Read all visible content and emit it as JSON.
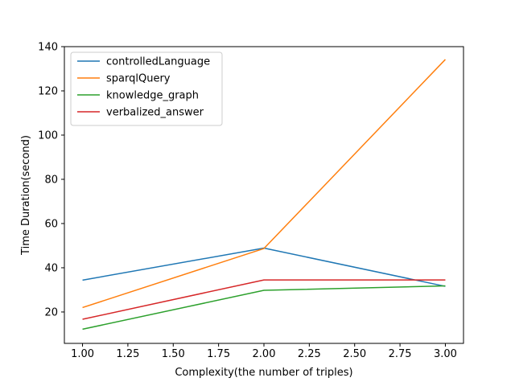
{
  "chart_data": {
    "type": "line",
    "xlabel": "Complexity(the number of triples)",
    "ylabel": "Time Duration(second)",
    "xlim": [
      0.9,
      3.1
    ],
    "ylim": [
      5.8,
      140
    ],
    "xticks": [
      1.0,
      1.25,
      1.5,
      1.75,
      2.0,
      2.25,
      2.5,
      2.75,
      3.0
    ],
    "xtick_labels": [
      "1.00",
      "1.25",
      "1.50",
      "1.75",
      "2.00",
      "2.25",
      "2.50",
      "2.75",
      "3.00"
    ],
    "yticks": [
      20,
      40,
      60,
      80,
      100,
      120,
      140
    ],
    "ytick_labels": [
      "20",
      "40",
      "60",
      "80",
      "100",
      "120",
      "140"
    ],
    "grid": false,
    "legend_position": "upper-left",
    "x": [
      1,
      2,
      3
    ],
    "series": [
      {
        "name": "controlledLanguage",
        "color": "#1f77b4",
        "values": [
          34.4,
          48.9,
          31.6
        ]
      },
      {
        "name": "sparqlQuery",
        "color": "#ff7f0e",
        "values": [
          22.0,
          48.7,
          134.2
        ]
      },
      {
        "name": "knowledge_graph",
        "color": "#2ca02c",
        "values": [
          12.2,
          29.8,
          31.8
        ]
      },
      {
        "name": "verbalized_answer",
        "color": "#d62728",
        "values": [
          16.7,
          34.5,
          34.5
        ]
      }
    ]
  }
}
